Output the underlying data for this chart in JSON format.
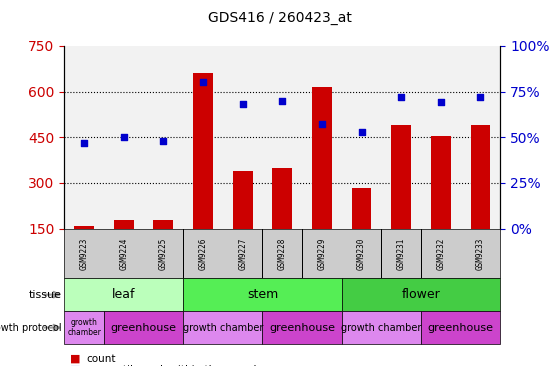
{
  "title": "GDS416 / 260423_at",
  "samples": [
    "GSM9223",
    "GSM9224",
    "GSM9225",
    "GSM9226",
    "GSM9227",
    "GSM9228",
    "GSM9229",
    "GSM9230",
    "GSM9231",
    "GSM9232",
    "GSM9233"
  ],
  "counts": [
    160,
    178,
    178,
    660,
    340,
    348,
    615,
    285,
    490,
    455,
    490
  ],
  "percentiles": [
    47,
    50,
    48,
    80,
    68,
    70,
    57,
    53,
    72,
    69,
    72
  ],
  "ylim_left": [
    150,
    750
  ],
  "ylim_right": [
    0,
    100
  ],
  "yticks_left": [
    150,
    300,
    450,
    600,
    750
  ],
  "yticks_right": [
    0,
    25,
    50,
    75,
    100
  ],
  "bar_color": "#cc0000",
  "scatter_color": "#0000cc",
  "tissue_groups": [
    {
      "label": "leaf",
      "start": 0,
      "end": 3,
      "color": "#bbffbb"
    },
    {
      "label": "stem",
      "start": 3,
      "end": 7,
      "color": "#55ee55"
    },
    {
      "label": "flower",
      "start": 7,
      "end": 11,
      "color": "#44cc44"
    }
  ],
  "protocol_groups": [
    {
      "label": "growth\nchamber",
      "start": 0,
      "end": 1,
      "color": "#dd88ee",
      "fontsize": 5.5
    },
    {
      "label": "greenhouse",
      "start": 1,
      "end": 3,
      "color": "#cc44cc",
      "fontsize": 8
    },
    {
      "label": "growth chamber",
      "start": 3,
      "end": 5,
      "color": "#dd88ee",
      "fontsize": 7
    },
    {
      "label": "greenhouse",
      "start": 5,
      "end": 7,
      "color": "#cc44cc",
      "fontsize": 8
    },
    {
      "label": "growth chamber",
      "start": 7,
      "end": 9,
      "color": "#dd88ee",
      "fontsize": 7
    },
    {
      "label": "greenhouse",
      "start": 9,
      "end": 11,
      "color": "#cc44cc",
      "fontsize": 8
    }
  ],
  "plot_bg_color": "#f2f2f2",
  "xtick_bg_color": "#cccccc",
  "left_tick_color": "#cc0000",
  "right_tick_color": "#0000cc",
  "grid_color": "#000000",
  "tissue_label_color": "#555555",
  "arrow_color": "#999999"
}
